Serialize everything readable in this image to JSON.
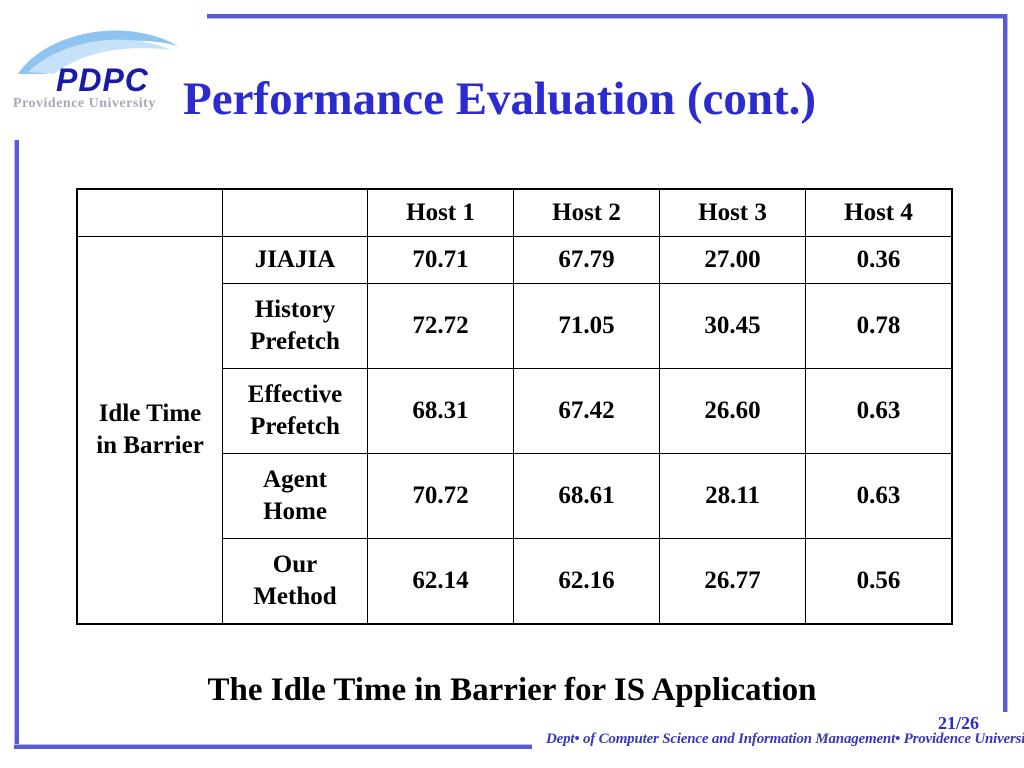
{
  "logo": {
    "name": "PDPC",
    "subtitle": "Providence University"
  },
  "slide": {
    "title": "Performance Evaluation (cont.)",
    "caption": "The Idle Time in Barrier for IS Application",
    "page": "21/26",
    "footer": "Dept• of Computer Science and Information Management• Providence University"
  },
  "table": {
    "headers": [
      "",
      "",
      "Host 1",
      "Host 2",
      "Host 3",
      "Host 4"
    ],
    "group_label": "Idle Time in Barrier",
    "rows": [
      {
        "method": "JIAJIA",
        "values": [
          "70.71",
          "67.79",
          "27.00",
          "0.36"
        ]
      },
      {
        "method": "History Prefetch",
        "values": [
          "72.72",
          "71.05",
          "30.45",
          "0.78"
        ]
      },
      {
        "method": "Effective Prefetch",
        "values": [
          "68.31",
          "67.42",
          "26.60",
          "0.63"
        ]
      },
      {
        "method": "Agent Home",
        "values": [
          "70.72",
          "68.61",
          "28.11",
          "0.63"
        ]
      },
      {
        "method": "Our Method",
        "values": [
          "62.14",
          "62.16",
          "26.77",
          "0.56"
        ]
      }
    ]
  }
}
